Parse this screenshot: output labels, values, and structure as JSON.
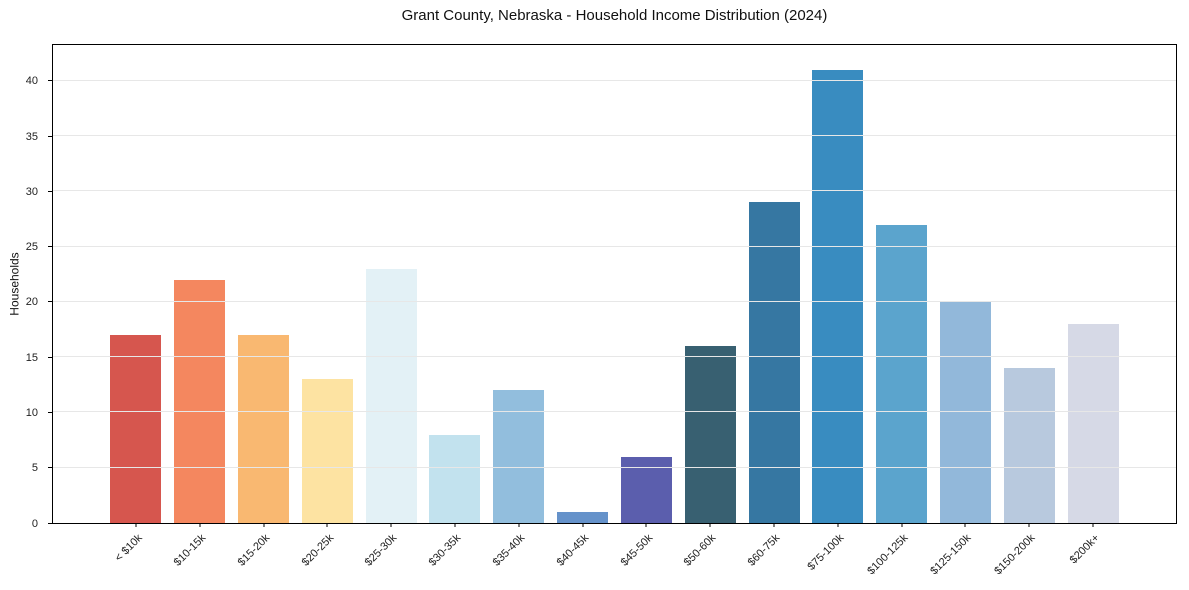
{
  "title": "Grant County, Nebraska - Household Income Distribution (2024)",
  "chart_data": {
    "type": "bar",
    "title": "Grant County, Nebraska - Household Income Distribution (2024)",
    "xlabel": "",
    "ylabel": "Households",
    "categories": [
      "< $10k",
      "$10-15k",
      "$15-20k",
      "$20-25k",
      "$25-30k",
      "$30-35k",
      "$35-40k",
      "$40-45k",
      "$45-50k",
      "$50-60k",
      "$60-75k",
      "$75-100k",
      "$100-125k",
      "$125-150k",
      "$150-200k",
      "$200k+"
    ],
    "values": [
      17,
      22,
      17,
      13,
      23,
      8,
      12,
      1,
      6,
      16,
      29,
      41,
      27,
      20,
      14,
      18
    ],
    "bar_colors": [
      "#d6564e",
      "#f4875f",
      "#f9b871",
      "#fde3a2",
      "#e3f1f6",
      "#c2e2ee",
      "#92bedd",
      "#6592ca",
      "#5b5ead",
      "#386071",
      "#3677a2",
      "#398cc0",
      "#5ba4cd",
      "#92b8da",
      "#b8c9de",
      "#d6d9e6"
    ],
    "yticks": [
      0,
      5,
      10,
      15,
      20,
      25,
      30,
      35,
      40
    ],
    "ylim": [
      0,
      43.24
    ],
    "grid": "horizontal",
    "gridline_color": "#e7e7e7",
    "background_color": "#ffffff",
    "legend_position": "none"
  }
}
